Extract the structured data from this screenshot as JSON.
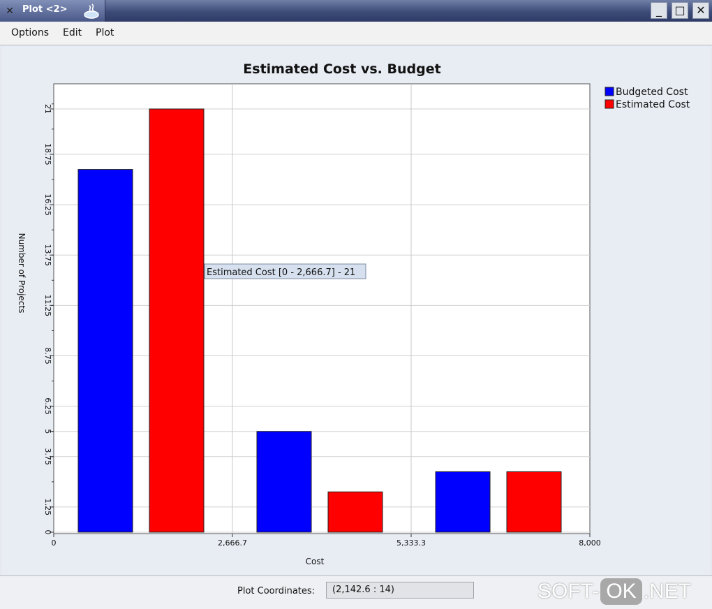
{
  "window": {
    "title": "Plot <2>",
    "minimize_glyph": "_",
    "maximize_glyph": "□",
    "close_glyph": "✕"
  },
  "menu": {
    "items": [
      "Options",
      "Edit",
      "Plot"
    ]
  },
  "chart_data": {
    "type": "bar",
    "title": "Estimated Cost vs. Budget",
    "xlabel": "Cost",
    "ylabel": "Number of Projects",
    "x_ticks": [
      "0",
      "2,666.7",
      "5,333.3",
      "8,000"
    ],
    "y_ticks": [
      "0",
      "1.25",
      "3.75",
      "5",
      "6.25",
      "8.75",
      "11.25",
      "13.75",
      "16.25",
      "18.75",
      "21"
    ],
    "ylim": [
      0,
      22
    ],
    "categories": [
      "0 - 2,666.7",
      "2,666.7 - 5,333.3",
      "5,333.3 - 8,000"
    ],
    "series": [
      {
        "name": "Budgeted Cost",
        "color": "#0000ff",
        "values": [
          18,
          5,
          3
        ]
      },
      {
        "name": "Estimated Cost",
        "color": "#ff0000",
        "values": [
          21,
          2,
          3
        ]
      }
    ],
    "legend_position": "top-right",
    "grid": true,
    "tooltip": "Estimated Cost [0 - 2,666.7] - 21"
  },
  "status": {
    "label": "Plot Coordinates:",
    "value": "(2,142.6 : 14)"
  },
  "watermark": {
    "left": "SOFT-",
    "badge": "OK",
    "right": ".NET"
  }
}
